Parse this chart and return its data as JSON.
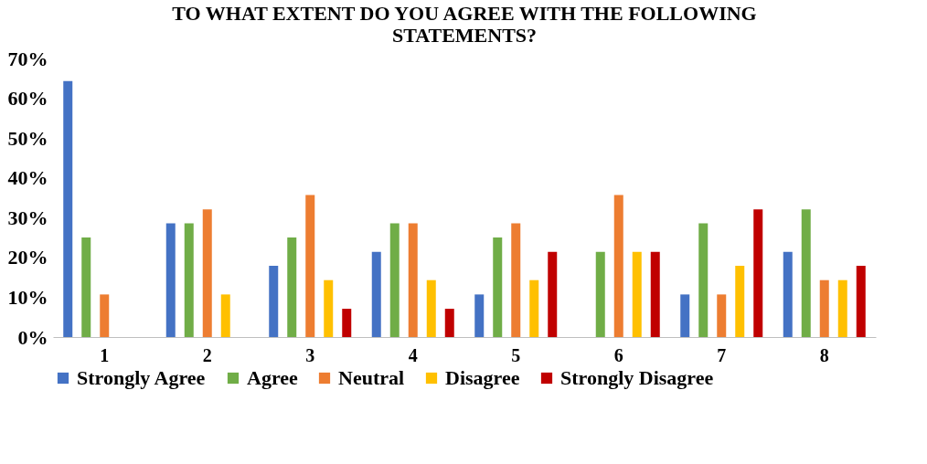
{
  "chart_data": {
    "type": "bar",
    "title": "TO WHAT EXTENT DO YOU AGREE WITH THE FOLLOWING STATEMENTS?",
    "categories": [
      "1",
      "2",
      "3",
      "4",
      "5",
      "6",
      "7",
      "8"
    ],
    "series": [
      {
        "name": "Strongly Agree",
        "color": "#4472c4",
        "values": [
          64.3,
          28.6,
          17.9,
          21.4,
          10.7,
          0,
          10.7,
          21.4
        ]
      },
      {
        "name": "Agree",
        "color": "#70ad47",
        "values": [
          25,
          28.6,
          25,
          28.6,
          25,
          21.4,
          28.6,
          32.1
        ]
      },
      {
        "name": "Neutral",
        "color": "#ed7d31",
        "values": [
          10.7,
          32.1,
          35.7,
          28.6,
          28.6,
          35.7,
          10.7,
          14.3
        ]
      },
      {
        "name": "Disagree",
        "color": "#ffc000",
        "values": [
          0,
          10.7,
          14.3,
          14.3,
          14.3,
          21.4,
          17.9,
          14.3
        ]
      },
      {
        "name": "Strongly Disagree",
        "color": "#c00000",
        "values": [
          0,
          0,
          7.1,
          7.1,
          21.4,
          21.4,
          32.1,
          17.9
        ]
      }
    ],
    "ylim": [
      0,
      70
    ],
    "yticks": [
      {
        "value": 0,
        "label": "0%"
      },
      {
        "value": 10,
        "label": "10%"
      },
      {
        "value": 20,
        "label": "20%"
      },
      {
        "value": 30,
        "label": "30%"
      },
      {
        "value": 40,
        "label": "40%"
      },
      {
        "value": 50,
        "label": "50%"
      },
      {
        "value": 60,
        "label": "60%"
      },
      {
        "value": 70,
        "label": "70%"
      }
    ],
    "grid": false,
    "legend": "bottom"
  }
}
